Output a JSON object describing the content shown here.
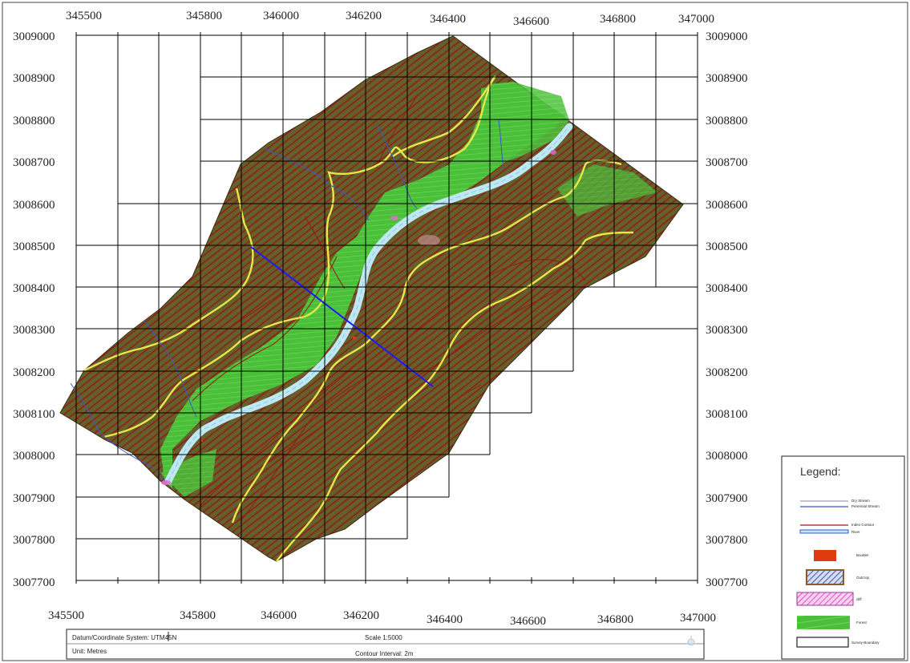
{
  "x_ticks_top": [
    "345500",
    "345800",
    "346000",
    "346200",
    "346400",
    "346600",
    "346800",
    "347000"
  ],
  "x_ticks_bottom": [
    "345500",
    "345800",
    "346000",
    "346200",
    "346400",
    "346600",
    "346800",
    "347000"
  ],
  "y_ticks_left": [
    "3009000",
    "3008900",
    "3008800",
    "3008700",
    "3008600",
    "3008500",
    "3008400",
    "3008300",
    "3008200",
    "3008100",
    "3008000",
    "3007900",
    "3007800",
    "3007700"
  ],
  "y_ticks_right": [
    "3009000",
    "3008900",
    "3008800",
    "3008700",
    "3008600",
    "3008500",
    "3008400",
    "3008300",
    "3008200",
    "3008100",
    "3008000",
    "3007900",
    "3007800",
    "3007700"
  ],
  "title_block": {
    "datum": "Datum/Coordinate System: UTM45N",
    "unit": "Unit: Metres",
    "scale": "Scale 1:5000",
    "contour_interval": "Contour Interval: 2m"
  },
  "legend": {
    "title": "Legend:",
    "items": [
      {
        "label": "Dry Stream",
        "icon": "dry-stream-line"
      },
      {
        "label": "Perennial Stream",
        "icon": "perennial-stream-line"
      },
      {
        "label": "Index Contour",
        "icon": "index-contour-line"
      },
      {
        "label": "River",
        "icon": "river-band"
      },
      {
        "label": "Boulder",
        "icon": "boulder-swatch"
      },
      {
        "label": "Outcrop",
        "icon": "outcrop-swatch"
      },
      {
        "label": "cliff",
        "icon": "cliff-swatch"
      },
      {
        "label": "Forest",
        "icon": "forest-swatch"
      },
      {
        "label": "Survey Boundary",
        "icon": "survey-boundary-swatch"
      }
    ]
  },
  "colors": {
    "terrain": "#6b5a2a",
    "contour": "#8b1a12",
    "forest": "#4cbf3a",
    "river": "#b9e6f3",
    "index_contour_yellow": "#e8e84a",
    "stream": "#3a57c8",
    "section_line": "#1a1aff",
    "boulder": "#e03a10",
    "cliff": "#e36ccf",
    "outcrop": "#5a6db8"
  }
}
